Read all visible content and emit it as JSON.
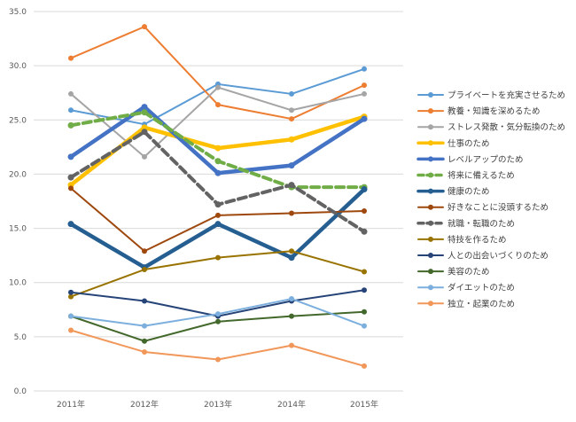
{
  "chart_data": {
    "type": "line",
    "categories": [
      "2011年",
      "2012年",
      "2013年",
      "2014年",
      "2015年"
    ],
    "ylim": [
      0,
      35
    ],
    "yticks": [
      "0.0",
      "5.0",
      "10.0",
      "15.0",
      "20.0",
      "25.0",
      "30.0",
      "35.0"
    ],
    "grid": true,
    "legend_position": "right",
    "series": [
      {
        "name": "プライベートを充実させるため",
        "values": [
          25.9,
          24.6,
          28.3,
          27.4,
          29.7
        ],
        "color": "#5b9bd5",
        "style": "thin"
      },
      {
        "name": "教養・知識を深めるため",
        "values": [
          30.7,
          33.6,
          26.4,
          25.1,
          28.2
        ],
        "color": "#ed7d31",
        "style": "thin"
      },
      {
        "name": "ストレス発散・気分転換のため",
        "values": [
          27.4,
          21.6,
          28.0,
          25.9,
          27.4
        ],
        "color": "#a5a5a5",
        "style": "thin"
      },
      {
        "name": "仕事のため",
        "values": [
          19.0,
          24.3,
          22.4,
          23.2,
          25.3
        ],
        "color": "#ffc000",
        "style": "thick"
      },
      {
        "name": "レベルアップのため",
        "values": [
          21.6,
          26.2,
          20.1,
          20.8,
          25.1
        ],
        "color": "#4472c4",
        "style": "thick"
      },
      {
        "name": "将来に備えるため",
        "values": [
          24.5,
          25.7,
          21.2,
          18.8,
          18.8
        ],
        "color": "#70ad47",
        "style": "dashed"
      },
      {
        "name": "健康のため",
        "values": [
          15.4,
          11.4,
          15.4,
          12.3,
          18.6
        ],
        "color": "#255e91",
        "style": "thick"
      },
      {
        "name": "好きなことに没頭するため",
        "values": [
          18.7,
          12.9,
          16.2,
          16.4,
          16.6
        ],
        "color": "#9e480e",
        "style": "thin"
      },
      {
        "name": "就職・転職のため",
        "values": [
          19.7,
          23.9,
          17.2,
          19.0,
          14.7
        ],
        "color": "#636363",
        "style": "dashed"
      },
      {
        "name": "特技を作るため",
        "values": [
          8.7,
          11.2,
          12.3,
          12.9,
          11.0
        ],
        "color": "#997300",
        "style": "thin"
      },
      {
        "name": "人との出会いづくりのため",
        "values": [
          9.1,
          8.3,
          6.9,
          8.3,
          9.3
        ],
        "color": "#264478",
        "style": "thin"
      },
      {
        "name": "美容のため",
        "values": [
          6.9,
          4.6,
          6.4,
          6.9,
          7.3
        ],
        "color": "#43682b",
        "style": "thin"
      },
      {
        "name": "ダイエットのため",
        "values": [
          6.9,
          6.0,
          7.1,
          8.5,
          6.0
        ],
        "color": "#7cafdd",
        "style": "thin"
      },
      {
        "name": "独立・起業のため",
        "values": [
          5.6,
          3.6,
          2.9,
          4.2,
          2.3
        ],
        "color": "#f1975a",
        "style": "thin"
      }
    ]
  }
}
